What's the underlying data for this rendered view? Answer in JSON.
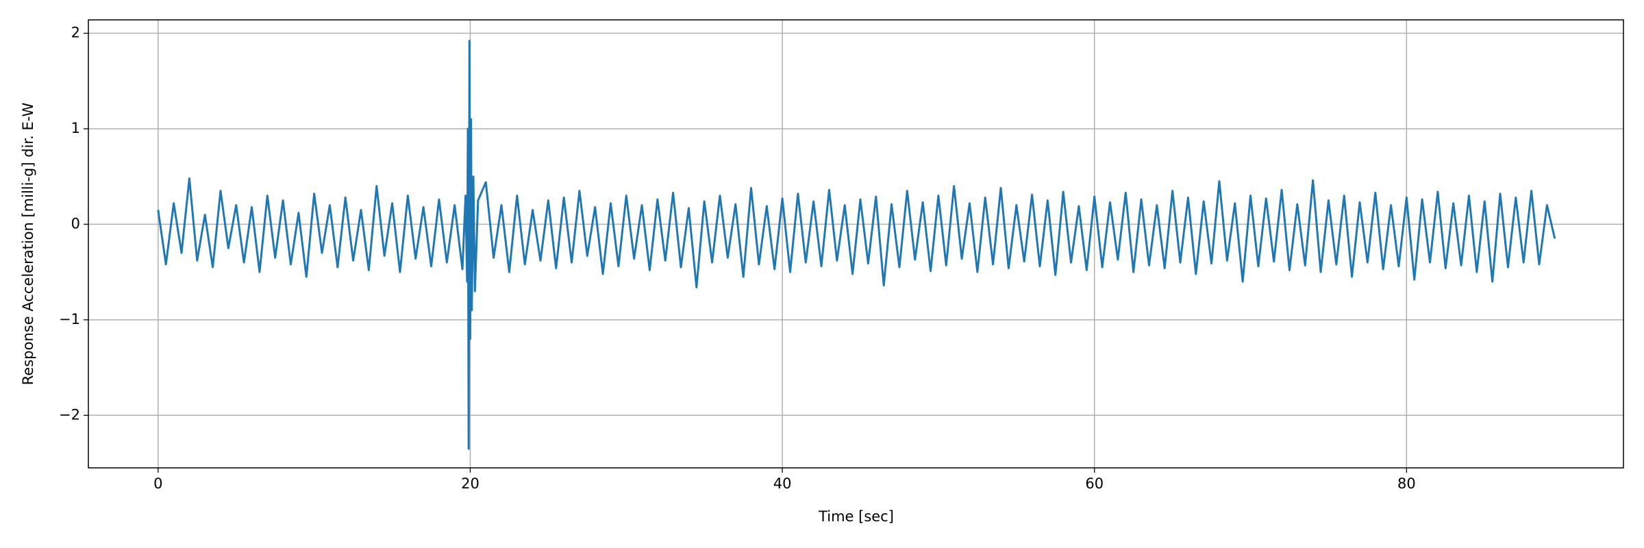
{
  "chart_data": {
    "type": "line",
    "xlabel": "Time [sec]",
    "ylabel": "Response Acceleration [milli-g] dir. E-W",
    "xlim": [
      -4.47,
      93.9
    ],
    "ylim": [
      -2.55,
      2.14
    ],
    "xticks": [
      0,
      20,
      40,
      60,
      80
    ],
    "yticks": [
      {
        "value": -2,
        "label": "−2"
      },
      {
        "value": -1,
        "label": "−1"
      },
      0,
      1,
      2
    ],
    "grid": true,
    "x": [
      0,
      0.5,
      1,
      1.5,
      2,
      2.5,
      3,
      3.5,
      4,
      4.5,
      5,
      5.5,
      6,
      6.5,
      7,
      7.5,
      8,
      8.5,
      9,
      9.5,
      10,
      10.5,
      11,
      11.5,
      12,
      12.5,
      13,
      13.5,
      14,
      14.5,
      15,
      15.5,
      16,
      16.5,
      17,
      17.5,
      18,
      18.5,
      19,
      19.5,
      19.7,
      19.8,
      19.85,
      19.9,
      19.95,
      20,
      20.05,
      20.1,
      20.2,
      20.3,
      20.5,
      21,
      21.5,
      22,
      22.5,
      23,
      23.5,
      24,
      24.5,
      25,
      25.5,
      26,
      26.5,
      27,
      27.5,
      28,
      28.5,
      29,
      29.5,
      30,
      30.5,
      31,
      31.5,
      32,
      32.5,
      33,
      33.5,
      34,
      34.5,
      35,
      35.5,
      36,
      36.5,
      37,
      37.5,
      38,
      38.5,
      39,
      39.5,
      40,
      40.5,
      41,
      41.5,
      42,
      42.5,
      43,
      43.5,
      44,
      44.5,
      45,
      45.5,
      46,
      46.5,
      47,
      47.5,
      48,
      48.5,
      49,
      49.5,
      50,
      50.5,
      51,
      51.5,
      52,
      52.5,
      53,
      53.5,
      54,
      54.5,
      55,
      55.5,
      56,
      56.5,
      57,
      57.5,
      58,
      58.5,
      59,
      59.5,
      60,
      60.5,
      61,
      61.5,
      62,
      62.5,
      63,
      63.5,
      64,
      64.5,
      65,
      65.5,
      66,
      66.5,
      67,
      67.5,
      68,
      68.5,
      69,
      69.5,
      70,
      70.5,
      71,
      71.5,
      72,
      72.5,
      73,
      73.5,
      74,
      74.5,
      75,
      75.5,
      76,
      76.5,
      77,
      77.5,
      78,
      78.5,
      79,
      79.5,
      80,
      80.5,
      81,
      81.5,
      82,
      82.5,
      83,
      83.5,
      84,
      84.5,
      85,
      85.5,
      86,
      86.5,
      87,
      87.5,
      88,
      88.5,
      89,
      89.5
    ],
    "series": [
      {
        "color": "#1f77b4",
        "values": [
          0.15,
          -0.42,
          0.22,
          -0.3,
          0.48,
          -0.38,
          0.1,
          -0.45,
          0.35,
          -0.25,
          0.2,
          -0.4,
          0.18,
          -0.5,
          0.3,
          -0.35,
          0.25,
          -0.42,
          0.12,
          -0.55,
          0.32,
          -0.3,
          0.2,
          -0.45,
          0.28,
          -0.38,
          0.15,
          -0.48,
          0.4,
          -0.33,
          0.22,
          -0.5,
          0.3,
          -0.36,
          0.18,
          -0.44,
          0.26,
          -0.4,
          0.2,
          -0.47,
          0.3,
          -0.6,
          1.0,
          -2.35,
          1.92,
          -1.2,
          1.1,
          -0.9,
          0.5,
          -0.7,
          0.25,
          0.44,
          -0.35,
          0.2,
          -0.5,
          0.3,
          -0.42,
          0.15,
          -0.38,
          0.25,
          -0.46,
          0.28,
          -0.4,
          0.35,
          -0.33,
          0.18,
          -0.52,
          0.22,
          -0.44,
          0.3,
          -0.36,
          0.2,
          -0.48,
          0.26,
          -0.38,
          0.33,
          -0.45,
          0.17,
          -0.66,
          0.24,
          -0.4,
          0.3,
          -0.35,
          0.21,
          -0.55,
          0.38,
          -0.42,
          0.19,
          -0.47,
          0.27,
          -0.5,
          0.32,
          -0.4,
          0.24,
          -0.44,
          0.36,
          -0.38,
          0.2,
          -0.52,
          0.26,
          -0.41,
          0.29,
          -0.64,
          0.21,
          -0.45,
          0.35,
          -0.37,
          0.23,
          -0.49,
          0.3,
          -0.43,
          0.4,
          -0.36,
          0.22,
          -0.5,
          0.28,
          -0.42,
          0.38,
          -0.46,
          0.2,
          -0.39,
          0.31,
          -0.44,
          0.25,
          -0.53,
          0.34,
          -0.4,
          0.19,
          -0.48,
          0.29,
          -0.45,
          0.23,
          -0.37,
          0.33,
          -0.5,
          0.26,
          -0.43,
          0.2,
          -0.46,
          0.35,
          -0.4,
          0.28,
          -0.52,
          0.24,
          -0.41,
          0.45,
          -0.38,
          0.22,
          -0.6,
          0.3,
          -0.44,
          0.27,
          -0.39,
          0.36,
          -0.48,
          0.21,
          -0.43,
          0.46,
          -0.5,
          0.25,
          -0.42,
          0.3,
          -0.55,
          0.23,
          -0.4,
          0.33,
          -0.47,
          0.2,
          -0.44,
          0.28,
          -0.58,
          0.26,
          -0.4,
          0.34,
          -0.46,
          0.22,
          -0.43,
          0.3,
          -0.5,
          0.24,
          -0.6,
          0.32,
          -0.45,
          0.28,
          -0.4,
          0.35,
          -0.42,
          0.2,
          -0.15
        ]
      }
    ]
  }
}
